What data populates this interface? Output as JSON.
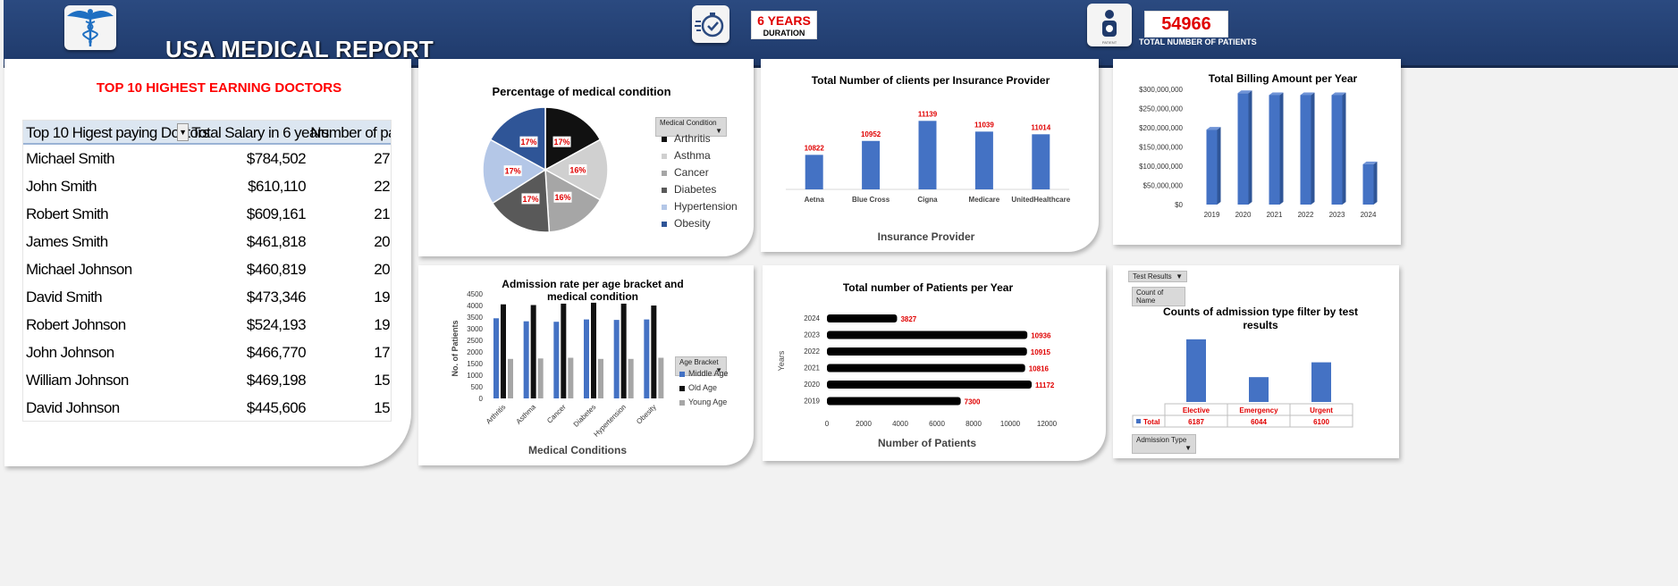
{
  "header": {
    "title": "USA MEDICAL REPORT",
    "duration_value": "6 YEARS",
    "duration_label": "DURATION",
    "patients_value": "54966",
    "patients_label": "TOTAL NUMBER OF PATIENTS",
    "patient_icon_caption": "PATIENT"
  },
  "doctors": {
    "title": "TOP 10 HIGHEST EARNING DOCTORS",
    "headers": [
      "Top 10 Higest paying Doctors",
      "Total Salary in 6 years",
      "Number of patie"
    ],
    "rows": [
      {
        "name": "Michael Smith",
        "salary": "$784,502",
        "patients": "27"
      },
      {
        "name": "John Smith",
        "salary": "$610,110",
        "patients": "22"
      },
      {
        "name": "Robert Smith",
        "salary": "$609,161",
        "patients": "21"
      },
      {
        "name": "James Smith",
        "salary": "$461,818",
        "patients": "20"
      },
      {
        "name": "Michael Johnson",
        "salary": "$460,819",
        "patients": "20"
      },
      {
        "name": "David Smith",
        "salary": "$473,346",
        "patients": "19"
      },
      {
        "name": "Robert Johnson",
        "salary": "$524,193",
        "patients": "19"
      },
      {
        "name": "John Johnson",
        "salary": "$466,770",
        "patients": "17"
      },
      {
        "name": "William Johnson",
        "salary": "$469,198",
        "patients": "15"
      },
      {
        "name": "David Johnson",
        "salary": "$445,606",
        "patients": "15"
      }
    ]
  },
  "chart_data": [
    {
      "id": "pie",
      "type": "pie",
      "title": "Percentage of medical condition",
      "filter_label": "Medical Condition",
      "slices": [
        {
          "label": "Arthritis",
          "pct": 17,
          "display": "17%",
          "color": "#111111"
        },
        {
          "label": "Asthma",
          "pct": 16,
          "display": "16%",
          "color": "#d0d0d0"
        },
        {
          "label": "Cancer",
          "pct": 16,
          "display": "16%",
          "color": "#a6a6a6"
        },
        {
          "label": "Diabetes",
          "pct": 17,
          "display": "17%",
          "color": "#595959"
        },
        {
          "label": "Hypertension",
          "pct": 17,
          "display": "17%",
          "color": "#b4c7e7"
        },
        {
          "label": "Obesity",
          "pct": 17,
          "display": "17%",
          "color": "#2f5597"
        }
      ]
    },
    {
      "id": "insurance",
      "type": "bar",
      "title": "Total Number of clients per  Insurance Provider",
      "xlabel": "Insurance Provider",
      "categories": [
        "Aetna",
        "Blue Cross",
        "Cigna",
        "Medicare",
        "UnitedHealthcare"
      ],
      "values": [
        10822,
        10952,
        11139,
        11039,
        11014
      ],
      "labels": [
        "10822",
        "10952",
        "11139",
        "11039",
        "11014"
      ],
      "ylim": [
        10500,
        11200
      ]
    },
    {
      "id": "billing",
      "type": "bar",
      "title": "Total Billing Amount per Year",
      "categories": [
        "2019",
        "2020",
        "2021",
        "2022",
        "2023",
        "2024"
      ],
      "values": [
        195000000,
        290000000,
        285000000,
        285000000,
        285000000,
        105000000
      ],
      "yticks": [
        "$0",
        "$50,000,000",
        "$100,000,000",
        "$150,000,000",
        "$200,000,000",
        "$250,000,000",
        "$300,000,000"
      ],
      "ylim": [
        0,
        300000000
      ]
    },
    {
      "id": "admission",
      "type": "bar",
      "title": "Admission rate per age bracket and medical condition",
      "xlabel": "Medical Conditions",
      "ylabel": "No. of Patients",
      "legend_title": "Age Bracket",
      "categories": [
        "Arthritis",
        "Asthma",
        "Cancer",
        "Diabetes",
        "Hypertension",
        "Obesity"
      ],
      "series": [
        {
          "name": "Middle Age",
          "color": "#4472c4",
          "values": [
            3450,
            3320,
            3300,
            3400,
            3380,
            3400
          ]
        },
        {
          "name": "Old Age",
          "color": "#111111",
          "values": [
            4050,
            4020,
            4080,
            4120,
            4080,
            4000
          ]
        },
        {
          "name": "Young Age",
          "color": "#a6a6a6",
          "values": [
            1700,
            1720,
            1750,
            1700,
            1700,
            1750
          ]
        }
      ],
      "yticks": [
        "0",
        "500",
        "1000",
        "1500",
        "2000",
        "2500",
        "3000",
        "3500",
        "4000",
        "4500"
      ],
      "ylim": [
        0,
        4500
      ]
    },
    {
      "id": "patients_year",
      "type": "bar",
      "title": "Total number of Patients per Year",
      "xlabel": "Number of Patients",
      "ylabel": "Years",
      "categories": [
        "2024",
        "2023",
        "2022",
        "2021",
        "2020",
        "2019"
      ],
      "values": [
        3827,
        10936,
        10915,
        10816,
        11172,
        7300
      ],
      "labels": [
        "3827",
        "10936",
        "10915",
        "10816",
        "11172",
        "7300"
      ],
      "xticks": [
        "0",
        "2000",
        "4000",
        "6000",
        "8000",
        "10000",
        "12000"
      ],
      "xlim": [
        0,
        12000
      ]
    },
    {
      "id": "admission_type",
      "type": "bar",
      "title": "Counts of admission type filter by  test results",
      "filter_top": "Test Results",
      "filter_sub": "Count of Name",
      "filter_bottom": "Admission Type",
      "series_name": "Total",
      "categories": [
        "Elective",
        "Emergency",
        "Urgent"
      ],
      "values": [
        6187,
        6044,
        6100
      ],
      "labels": [
        "6187",
        "6044",
        "6100"
      ],
      "ylim": [
        5950,
        6200
      ]
    }
  ]
}
